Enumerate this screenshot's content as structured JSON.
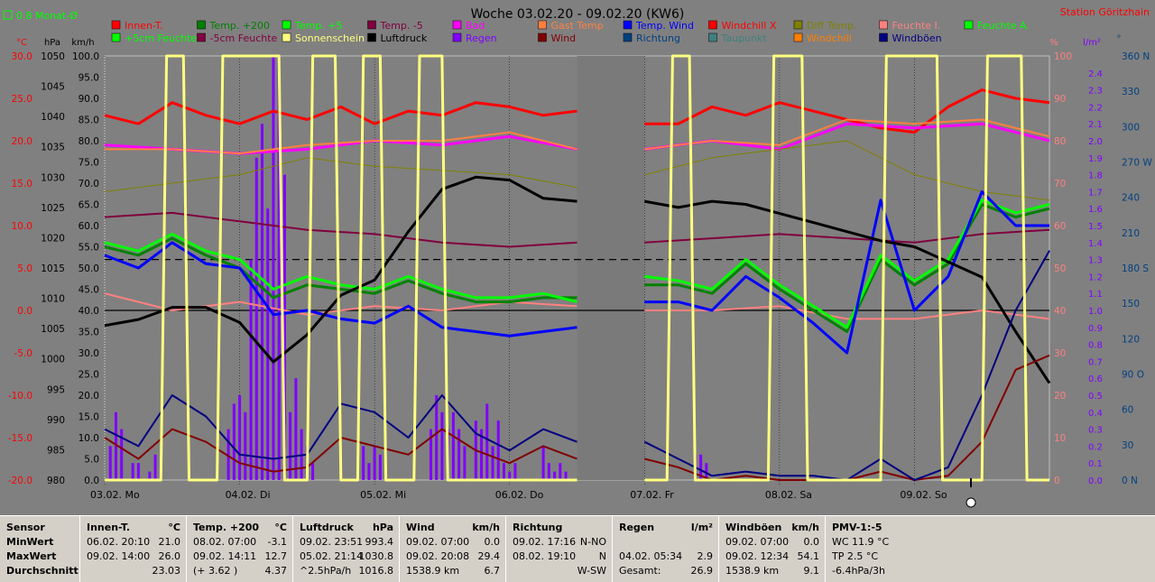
{
  "title": "Woche 03.02.20 - 09.02.20 (KW6)",
  "station": "Station Göritzhain",
  "mean_label": "0.8 Monat-Ø",
  "colors": {
    "bg": "#808080",
    "frame": "#c0c0c0"
  },
  "legend": [
    {
      "label": "Innen-T.",
      "color": "#ff0000"
    },
    {
      "label": "Temp. +200",
      "color": "#008000"
    },
    {
      "label": "Temp. +5",
      "color": "#00ff00"
    },
    {
      "label": "Temp. -5",
      "color": "#800040"
    },
    {
      "label": "Bad",
      "color": "#ff00ff"
    },
    {
      "label": "Gast Temp",
      "color": "#ff8040"
    },
    {
      "label": "Temp. Wind",
      "color": "#0000ff"
    },
    {
      "label": "Windchill X",
      "color": "#ff0000"
    },
    {
      "label": "Diff Temp.",
      "color": "#808000"
    },
    {
      "label": "Feuchte I.",
      "color": "#ff8080"
    },
    {
      "label": "Feuchte A.",
      "color": "#00ff00"
    },
    {
      "label": "+5cm Feuchte",
      "color": "#00ff00"
    },
    {
      "label": "-5cm Feuchte",
      "color": "#800040"
    },
    {
      "label": "Sonnenschein",
      "color": "#ffff80"
    },
    {
      "label": "Luftdruck",
      "color": "#000000"
    },
    {
      "label": "Regen",
      "color": "#8000ff"
    },
    {
      "label": "Wind",
      "color": "#800000"
    },
    {
      "label": "Richtung",
      "color": "#004080"
    },
    {
      "label": "Taupunkt",
      "color": "#408080"
    },
    {
      "label": "Windchill",
      "color": "#ff8000"
    },
    {
      "label": "Windböen",
      "color": "#000080"
    }
  ],
  "axes": {
    "temp": {
      "unit": "°C",
      "ticks": [
        "30.0",
        "25.0",
        "20.0",
        "15.0",
        "10.0",
        "5.0",
        "0.0",
        "-5.0",
        "-10.0",
        "-15.0",
        "-20.0"
      ]
    },
    "press": {
      "unit": "hPa",
      "ticks": [
        "1050",
        "1045",
        "1040",
        "1035",
        "1030",
        "1025",
        "1020",
        "1015",
        "1010",
        "1005",
        "1000",
        "995",
        "990",
        "985",
        "980"
      ]
    },
    "wind": {
      "unit": "km/h",
      "ticks": [
        "100.0",
        "95.0",
        "90.0",
        "85.0",
        "80.0",
        "75.0",
        "70.0",
        "65.0",
        "60.0",
        "55.0",
        "50.0",
        "45.0",
        "40.0",
        "35.0",
        "30.0",
        "25.0",
        "20.0",
        "15.0",
        "10.0",
        "5.0",
        "0.0"
      ]
    },
    "hum": {
      "unit": "%",
      "ticks": [
        "100",
        "90",
        "80",
        "70",
        "60",
        "50",
        "40",
        "30",
        "20",
        "10",
        "0"
      ]
    },
    "rain": {
      "unit": "l/m²",
      "ticks": [
        "2.4",
        "2.3",
        "2.2",
        "2.1",
        "2.0",
        "1.9",
        "1.8",
        "1.7",
        "1.6",
        "1.5",
        "1.4",
        "1.3",
        "1.2",
        "1.1",
        "1.0",
        "0.9",
        "0.8",
        "0.7",
        "0.6",
        "0.5",
        "0.4",
        "0.3",
        "0.2",
        "0.1",
        "0.0"
      ]
    },
    "dir": {
      "unit": "°",
      "ticks": [
        "360 N",
        "330",
        "300",
        "270 W",
        "240",
        "210",
        "180 S",
        "150",
        "120",
        "90 O",
        "60",
        "30",
        "0 N"
      ]
    },
    "days": [
      "03.02. Mo",
      "04.02. Di",
      "05.02. Mi",
      "06.02. Do",
      "07.02. Fr",
      "08.02. Sa",
      "09.02. So"
    ]
  },
  "chart_data": {
    "type": "line",
    "x_unit": "hours from 03.02. 00:00",
    "gaps": [
      [
        84,
        96
      ]
    ],
    "series": [
      {
        "name": "Innen-T.",
        "axis": "temp",
        "color": "#ff0000",
        "width": 3,
        "x": [
          0,
          6,
          12,
          18,
          24,
          30,
          36,
          42,
          48,
          54,
          60,
          66,
          72,
          78,
          84,
          96,
          102,
          108,
          114,
          120,
          126,
          132,
          138,
          144,
          150,
          156,
          162,
          168
        ],
        "y": [
          23.0,
          22.0,
          24.5,
          23.0,
          22.0,
          23.5,
          22.5,
          24.0,
          22.0,
          23.5,
          23.0,
          24.5,
          24.0,
          23.0,
          23.5,
          22.0,
          22.0,
          24.0,
          23.0,
          24.5,
          23.5,
          22.5,
          21.5,
          21.0,
          24.0,
          26.0,
          25.0,
          24.5
        ]
      },
      {
        "name": "Feuchte I.",
        "axis": "temp",
        "color": "#ff8080",
        "width": 2,
        "x": [
          0,
          12,
          24,
          36,
          48,
          60,
          72,
          84,
          96,
          108,
          120,
          132,
          144,
          156,
          168
        ],
        "y": [
          2.0,
          0.0,
          1.0,
          -0.5,
          0.5,
          0.0,
          1.0,
          0.5,
          0.0,
          0.0,
          0.5,
          -1.0,
          -1.0,
          0.0,
          -1.0
        ]
      },
      {
        "name": "Bad",
        "axis": "temp",
        "color": "#ff00ff",
        "width": 3,
        "x": [
          0,
          12,
          24,
          36,
          48,
          60,
          72,
          84,
          96,
          108,
          120,
          132,
          144,
          156,
          168
        ],
        "y": [
          19.5,
          19.0,
          18.5,
          19.0,
          20.0,
          19.5,
          20.5,
          19.0,
          19.0,
          20.0,
          19.0,
          22.0,
          21.5,
          22.0,
          20.0
        ]
      },
      {
        "name": "Gast Temp",
        "axis": "temp",
        "color": "#ff8040",
        "width": 2,
        "x": [
          0,
          12,
          24,
          36,
          48,
          60,
          72,
          84,
          96,
          108,
          120,
          132,
          144,
          156,
          168
        ],
        "y": [
          19.0,
          19.0,
          18.5,
          19.5,
          20.0,
          20.0,
          21.0,
          19.0,
          19.0,
          20.0,
          19.5,
          22.5,
          22.0,
          22.5,
          20.5
        ]
      },
      {
        "name": "Temp. -5",
        "axis": "temp",
        "color": "#800040",
        "width": 2,
        "x": [
          0,
          12,
          24,
          36,
          48,
          60,
          72,
          84,
          96,
          108,
          120,
          132,
          144,
          156,
          168
        ],
        "y": [
          11.0,
          11.5,
          10.5,
          9.5,
          9.0,
          8.0,
          7.5,
          8.0,
          8.0,
          8.5,
          9.0,
          8.5,
          8.0,
          9.0,
          9.5
        ]
      },
      {
        "name": "Diff Temp.",
        "axis": "temp",
        "color": "#808000",
        "width": 1,
        "x": [
          0,
          12,
          24,
          36,
          48,
          60,
          72,
          84,
          96,
          108,
          120,
          132,
          144,
          156,
          168
        ],
        "y": [
          14.0,
          15.0,
          16.0,
          18.0,
          17.0,
          16.5,
          16.0,
          14.5,
          16.0,
          18.0,
          19.0,
          20.0,
          16.0,
          14.0,
          13.0
        ]
      },
      {
        "name": "Temp. +200",
        "axis": "temp",
        "color": "#008000",
        "width": 3,
        "x": [
          0,
          6,
          12,
          18,
          24,
          30,
          36,
          42,
          48,
          54,
          60,
          66,
          72,
          78,
          84,
          96,
          102,
          108,
          114,
          120,
          126,
          132,
          138,
          144,
          150,
          156,
          162,
          168
        ],
        "y": [
          7.5,
          6.5,
          8.5,
          6.5,
          5.0,
          1.5,
          3.0,
          2.5,
          2.0,
          3.5,
          2.0,
          1.0,
          1.0,
          1.5,
          1.5,
          3.0,
          3.0,
          2.0,
          5.5,
          2.5,
          0.0,
          -2.5,
          6.0,
          3.0,
          5.5,
          12.5,
          11.0,
          12.0
        ]
      },
      {
        "name": "Temp. +5",
        "axis": "temp",
        "color": "#00ff00",
        "width": 3,
        "x": [
          0,
          6,
          12,
          18,
          24,
          30,
          36,
          42,
          48,
          54,
          60,
          66,
          72,
          78,
          84,
          96,
          102,
          108,
          114,
          120,
          126,
          132,
          138,
          144,
          150,
          156,
          162,
          168
        ],
        "y": [
          8.0,
          7.0,
          9.0,
          7.0,
          6.0,
          2.5,
          4.0,
          3.0,
          2.5,
          4.0,
          2.5,
          1.5,
          1.5,
          2.0,
          1.0,
          4.0,
          3.5,
          2.5,
          6.0,
          3.0,
          0.5,
          -2.0,
          6.5,
          3.5,
          6.0,
          13.0,
          11.5,
          12.5
        ]
      },
      {
        "name": "Temp. Wind",
        "axis": "temp",
        "color": "#0000ff",
        "width": 3,
        "x": [
          0,
          6,
          12,
          18,
          24,
          30,
          36,
          42,
          48,
          54,
          60,
          66,
          72,
          78,
          84,
          96,
          102,
          108,
          114,
          120,
          126,
          132,
          138,
          144,
          150,
          156,
          162,
          168
        ],
        "y": [
          6.5,
          5.0,
          8.0,
          5.5,
          5.0,
          -0.5,
          0.0,
          -1.0,
          -1.5,
          0.5,
          -2.0,
          -2.5,
          -3.0,
          -2.5,
          -2.0,
          1.0,
          1.0,
          0.0,
          4.0,
          1.5,
          -1.5,
          -5.0,
          13.0,
          0.0,
          4.0,
          14.0,
          10.0,
          10.0
        ]
      },
      {
        "name": "Luftdruck",
        "axis": "press",
        "color": "#000000",
        "width": 3,
        "x": [
          0,
          6,
          12,
          18,
          24,
          30,
          36,
          42,
          48,
          54,
          60,
          66,
          72,
          78,
          84,
          96,
          102,
          108,
          114,
          120,
          126,
          132,
          138,
          144,
          150,
          156,
          162,
          168
        ],
        "y": [
          1005.5,
          1006.5,
          1008.5,
          1008.5,
          1006.0,
          999.5,
          1004.0,
          1010.5,
          1013.0,
          1021.0,
          1028.0,
          1030.0,
          1029.5,
          1026.5,
          1026.0,
          1026.0,
          1025.0,
          1026.0,
          1025.5,
          1024.0,
          1022.5,
          1021.0,
          1019.5,
          1018.5,
          1016.0,
          1013.5,
          1004.5,
          996.0
        ]
      },
      {
        "name": "Wind",
        "axis": "wind",
        "color": "#800000",
        "width": 2,
        "x": [
          0,
          6,
          12,
          18,
          24,
          30,
          36,
          42,
          48,
          54,
          60,
          66,
          72,
          78,
          84,
          96,
          102,
          108,
          114,
          120,
          126,
          132,
          138,
          144,
          150,
          156,
          162,
          168
        ],
        "y": [
          10.0,
          5.0,
          12.0,
          9.0,
          4.0,
          2.0,
          3.0,
          10.0,
          8.0,
          6.0,
          12.0,
          7.0,
          4.0,
          8.0,
          5.0,
          5.0,
          3.0,
          0.0,
          1.0,
          0.0,
          0.0,
          0.0,
          2.0,
          0.0,
          1.0,
          9.0,
          26.0,
          29.4
        ]
      },
      {
        "name": "Windböen",
        "axis": "wind",
        "color": "#000080",
        "width": 2,
        "x": [
          0,
          6,
          12,
          18,
          24,
          30,
          36,
          42,
          48,
          54,
          60,
          66,
          72,
          78,
          84,
          96,
          102,
          108,
          114,
          120,
          126,
          132,
          138,
          144,
          150,
          156,
          162,
          168
        ],
        "y": [
          12.0,
          8.0,
          20.0,
          15.0,
          6.0,
          5.0,
          6.0,
          18.0,
          16.0,
          10.0,
          20.0,
          11.0,
          7.0,
          12.0,
          9.0,
          9.0,
          5.0,
          1.0,
          2.0,
          1.0,
          1.0,
          0.0,
          5.0,
          0.0,
          3.0,
          20.0,
          40.0,
          54.1
        ]
      },
      {
        "name": "Sonnenschein",
        "axis": "wind",
        "color": "#ffff80",
        "width": 3,
        "x": [
          0,
          10,
          11,
          14,
          15,
          20,
          21,
          24,
          31,
          32,
          36,
          37,
          41,
          42,
          45,
          46,
          49,
          50,
          55,
          56,
          60,
          61,
          84,
          96,
          100,
          101,
          104,
          105,
          118,
          119,
          124,
          125,
          138,
          139,
          148,
          149,
          156,
          157,
          163,
          164,
          168
        ],
        "y": [
          0,
          0,
          100,
          100,
          0,
          0,
          100,
          100,
          100,
          0,
          0,
          100,
          100,
          0,
          0,
          100,
          100,
          0,
          0,
          100,
          100,
          0,
          0,
          0,
          0,
          100,
          100,
          0,
          0,
          100,
          100,
          0,
          0,
          100,
          100,
          0,
          0,
          100,
          100,
          0,
          0
        ]
      }
    ],
    "rain": {
      "axis": "rain",
      "color": "#8000ff",
      "x": [
        1,
        2,
        3,
        5,
        6,
        8,
        9,
        10,
        22,
        23,
        24,
        25,
        26,
        27,
        28,
        29,
        30,
        31,
        32,
        33,
        34,
        35,
        36,
        37,
        46,
        47,
        48,
        49,
        58,
        59,
        60,
        61,
        62,
        63,
        64,
        66,
        67,
        68,
        69,
        70,
        71,
        72,
        73,
        78,
        79,
        80,
        81,
        82,
        105,
        106,
        107
      ],
      "y": [
        0.2,
        0.4,
        0.3,
        0.1,
        0.1,
        0.05,
        0.15,
        0.05,
        0.3,
        0.45,
        0.5,
        0.4,
        1.3,
        1.9,
        2.1,
        1.6,
        2.5,
        2.5,
        1.8,
        0.4,
        0.6,
        0.3,
        0.2,
        0.1,
        0.2,
        0.1,
        0.2,
        0.15,
        0.3,
        0.5,
        0.4,
        0.3,
        0.4,
        0.3,
        0.2,
        0.35,
        0.3,
        0.45,
        0.2,
        0.35,
        0.1,
        0.05,
        0.1,
        0.2,
        0.1,
        0.05,
        0.1,
        0.05,
        0.15,
        0.15,
        0.1
      ]
    },
    "ref_lines": [
      {
        "axis": "temp",
        "y": 6.0,
        "dash": true
      },
      {
        "axis": "temp",
        "y": 0.0,
        "dash": false
      }
    ]
  },
  "stats": [
    {
      "head": [
        "Sensor",
        ""
      ],
      "rows": [
        [
          "MinWert",
          ""
        ],
        [
          "MaxWert",
          ""
        ],
        [
          "Durchschnitt",
          ""
        ]
      ]
    },
    {
      "head": [
        "Innen-T.",
        "°C"
      ],
      "rows": [
        [
          "06.02.  20:10",
          "21.0"
        ],
        [
          "09.02.  14:00",
          "26.0"
        ],
        [
          "",
          "23.03"
        ]
      ]
    },
    {
      "head": [
        "Temp. +200",
        "°C"
      ],
      "rows": [
        [
          "08.02.  07:00",
          "-3.1"
        ],
        [
          "09.02.  14:11",
          "12.7"
        ],
        [
          "(+ 3.62 )",
          "4.37"
        ]
      ]
    },
    {
      "head": [
        "Luftdruck",
        "hPa"
      ],
      "rows": [
        [
          "09.02.  23:51",
          "993.4"
        ],
        [
          "05.02.  21:14",
          "1030.8"
        ],
        [
          "^2.5hPa/h",
          "1016.8"
        ]
      ]
    },
    {
      "head": [
        "Wind",
        "km/h"
      ],
      "rows": [
        [
          "09.02.  07:00",
          "0.0"
        ],
        [
          "09.02.  20:08",
          "29.4"
        ],
        [
          "1538.9 km",
          "6.7"
        ]
      ]
    },
    {
      "head": [
        "Richtung",
        ""
      ],
      "rows": [
        [
          "09.02.  17:16",
          "N-NO"
        ],
        [
          "08.02.  19:10",
          "N"
        ],
        [
          "",
          "W-SW"
        ]
      ]
    },
    {
      "head": [
        "Regen",
        "l/m²"
      ],
      "rows": [
        [
          "",
          ""
        ],
        [
          "04.02.  05:34",
          "2.9"
        ],
        [
          "Gesamt:",
          "26.9"
        ]
      ]
    },
    {
      "head": [
        "Windböen",
        "km/h"
      ],
      "rows": [
        [
          "09.02.  07:00",
          "0.0"
        ],
        [
          "09.02.  12:34",
          "54.1"
        ],
        [
          "1538.9 km",
          "9.1"
        ]
      ]
    },
    {
      "head": [
        "PMV-1:-5",
        ""
      ],
      "rows": [
        [
          "WC 11.9 °C",
          ""
        ],
        [
          "TP 2.5 °C",
          ""
        ],
        [
          "-6.4hPa/3h",
          ""
        ]
      ]
    }
  ]
}
